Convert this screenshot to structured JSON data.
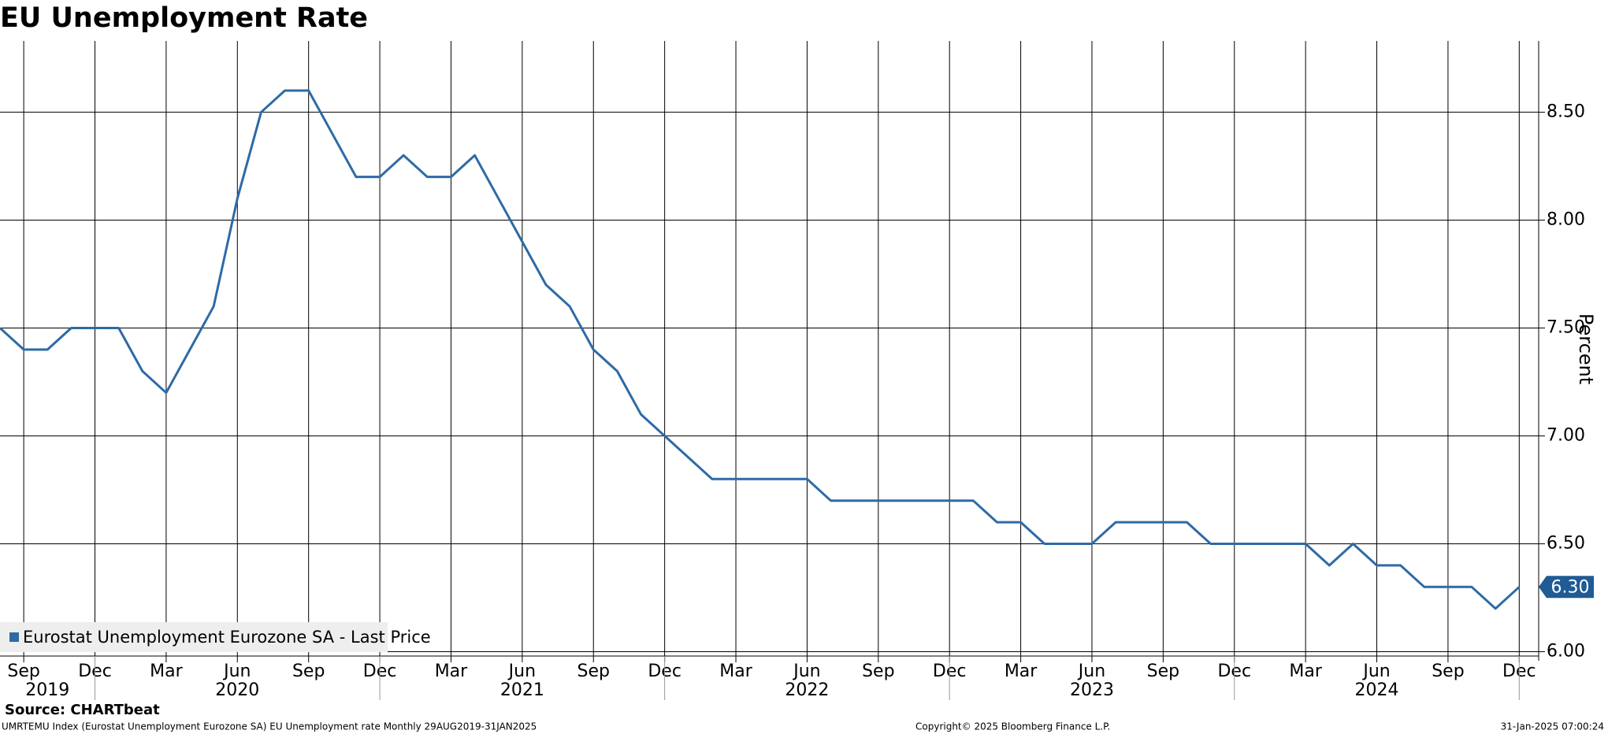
{
  "chart_data": {
    "type": "line",
    "title": "EU Unemployment Rate",
    "y_label": "Percent",
    "x": [
      "2019-08",
      "2019-09",
      "2019-10",
      "2019-11",
      "2019-12",
      "2020-01",
      "2020-02",
      "2020-03",
      "2020-04",
      "2020-05",
      "2020-06",
      "2020-07",
      "2020-08",
      "2020-09",
      "2020-10",
      "2020-11",
      "2020-12",
      "2021-01",
      "2021-02",
      "2021-03",
      "2021-04",
      "2021-05",
      "2021-06",
      "2021-07",
      "2021-08",
      "2021-09",
      "2021-10",
      "2021-11",
      "2021-12",
      "2022-01",
      "2022-02",
      "2022-03",
      "2022-04",
      "2022-05",
      "2022-06",
      "2022-07",
      "2022-08",
      "2022-09",
      "2022-10",
      "2022-11",
      "2022-12",
      "2023-01",
      "2023-02",
      "2023-03",
      "2023-04",
      "2023-05",
      "2023-06",
      "2023-07",
      "2023-08",
      "2023-09",
      "2023-10",
      "2023-11",
      "2023-12",
      "2024-01",
      "2024-02",
      "2024-03",
      "2024-04",
      "2024-05",
      "2024-06",
      "2024-07",
      "2024-08",
      "2024-09",
      "2024-10",
      "2024-11",
      "2024-12"
    ],
    "series": [
      {
        "name": "Eurostat Unemployment Eurozone SA - Last Price",
        "color": "#2e6aa6",
        "values": [
          7.5,
          7.4,
          7.4,
          7.5,
          7.5,
          7.5,
          7.3,
          7.2,
          7.4,
          7.6,
          8.1,
          8.5,
          8.6,
          8.6,
          8.4,
          8.2,
          8.2,
          8.3,
          8.2,
          8.2,
          8.3,
          8.1,
          7.9,
          7.7,
          7.6,
          7.4,
          7.3,
          7.1,
          7.0,
          6.9,
          6.8,
          6.8,
          6.8,
          6.8,
          6.8,
          6.7,
          6.7,
          6.7,
          6.7,
          6.7,
          6.7,
          6.7,
          6.6,
          6.6,
          6.5,
          6.5,
          6.5,
          6.6,
          6.6,
          6.6,
          6.6,
          6.5,
          6.5,
          6.5,
          6.5,
          6.5,
          6.4,
          6.5,
          6.4,
          6.4,
          6.3,
          6.3,
          6.3,
          6.2,
          6.3
        ],
        "last_value_label": "6.30"
      }
    ],
    "ylim": [
      5.98,
      8.83
    ],
    "yticks": [
      {
        "value": 6.0,
        "label": "6.00"
      },
      {
        "value": 6.5,
        "label": "6.50"
      },
      {
        "value": 7.0,
        "label": "7.00"
      },
      {
        "value": 7.5,
        "label": "7.50"
      },
      {
        "value": 8.0,
        "label": "8.00"
      },
      {
        "value": 8.5,
        "label": "8.50"
      }
    ],
    "xticks": [
      {
        "value": "2019-09",
        "label": "Sep"
      },
      {
        "value": "2019-12",
        "label": "Dec"
      },
      {
        "value": "2020-03",
        "label": "Mar"
      },
      {
        "value": "2020-06",
        "label": "Jun"
      },
      {
        "value": "2020-09",
        "label": "Sep"
      },
      {
        "value": "2020-12",
        "label": "Dec"
      },
      {
        "value": "2021-03",
        "label": "Mar"
      },
      {
        "value": "2021-06",
        "label": "Jun"
      },
      {
        "value": "2021-09",
        "label": "Sep"
      },
      {
        "value": "2021-12",
        "label": "Dec"
      },
      {
        "value": "2022-03",
        "label": "Mar"
      },
      {
        "value": "2022-06",
        "label": "Jun"
      },
      {
        "value": "2022-09",
        "label": "Sep"
      },
      {
        "value": "2022-12",
        "label": "Dec"
      },
      {
        "value": "2023-03",
        "label": "Mar"
      },
      {
        "value": "2023-06",
        "label": "Jun"
      },
      {
        "value": "2023-09",
        "label": "Sep"
      },
      {
        "value": "2023-12",
        "label": "Dec"
      },
      {
        "value": "2024-03",
        "label": "Mar"
      },
      {
        "value": "2024-06",
        "label": "Jun"
      },
      {
        "value": "2024-09",
        "label": "Sep"
      },
      {
        "value": "2024-12",
        "label": "Dec"
      }
    ],
    "year_ticks": [
      2019,
      2020,
      2021,
      2022,
      2023,
      2024
    ],
    "grid": true,
    "legend": "bottom-left",
    "source": "Source: CHARTbeat",
    "footer_left": "UMRTEMU Index (Eurostat Unemployment Eurozone SA) EU Unemployment rate  Monthly 29AUG2019-31JAN2025",
    "footer_center": "Copyright© 2025 Bloomberg Finance L.P.",
    "footer_right": "31-Jan-2025 07:00:24"
  }
}
